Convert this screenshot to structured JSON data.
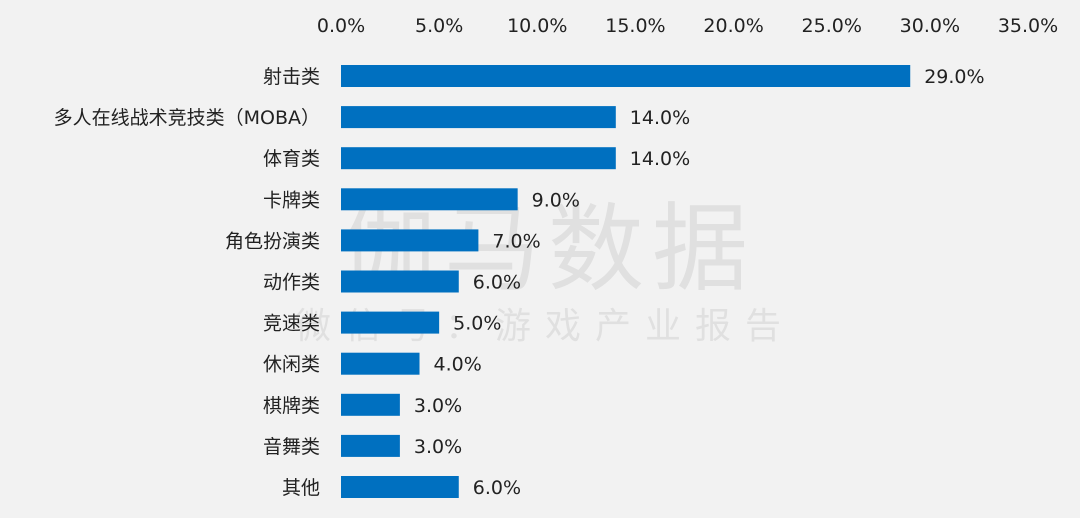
{
  "watermark": {
    "main": "伽马数据",
    "sub": "微信号：游戏产业报告"
  },
  "chart_data": {
    "type": "bar",
    "orientation": "horizontal",
    "categories": [
      "射击类",
      "多人在线战术竞技类（MOBA）",
      "体育类",
      "卡牌类",
      "角色扮演类",
      "动作类",
      "竞速类",
      "休闲类",
      "棋牌类",
      "音舞类",
      "其他"
    ],
    "values": [
      29.0,
      14.0,
      14.0,
      9.0,
      7.0,
      6.0,
      5.0,
      4.0,
      3.0,
      3.0,
      6.0
    ],
    "value_labels": [
      "29.0%",
      "14.0%",
      "14.0%",
      "9.0%",
      "7.0%",
      "6.0%",
      "5.0%",
      "4.0%",
      "3.0%",
      "3.0%",
      "6.0%"
    ],
    "x_ticks": [
      "0.0%",
      "5.0%",
      "10.0%",
      "15.0%",
      "20.0%",
      "25.0%",
      "30.0%",
      "35.0%"
    ],
    "xlim": [
      0,
      35
    ],
    "axis_position": "top",
    "grid": false,
    "bar_color": "#0070c0",
    "background": "#f2f2f2"
  }
}
